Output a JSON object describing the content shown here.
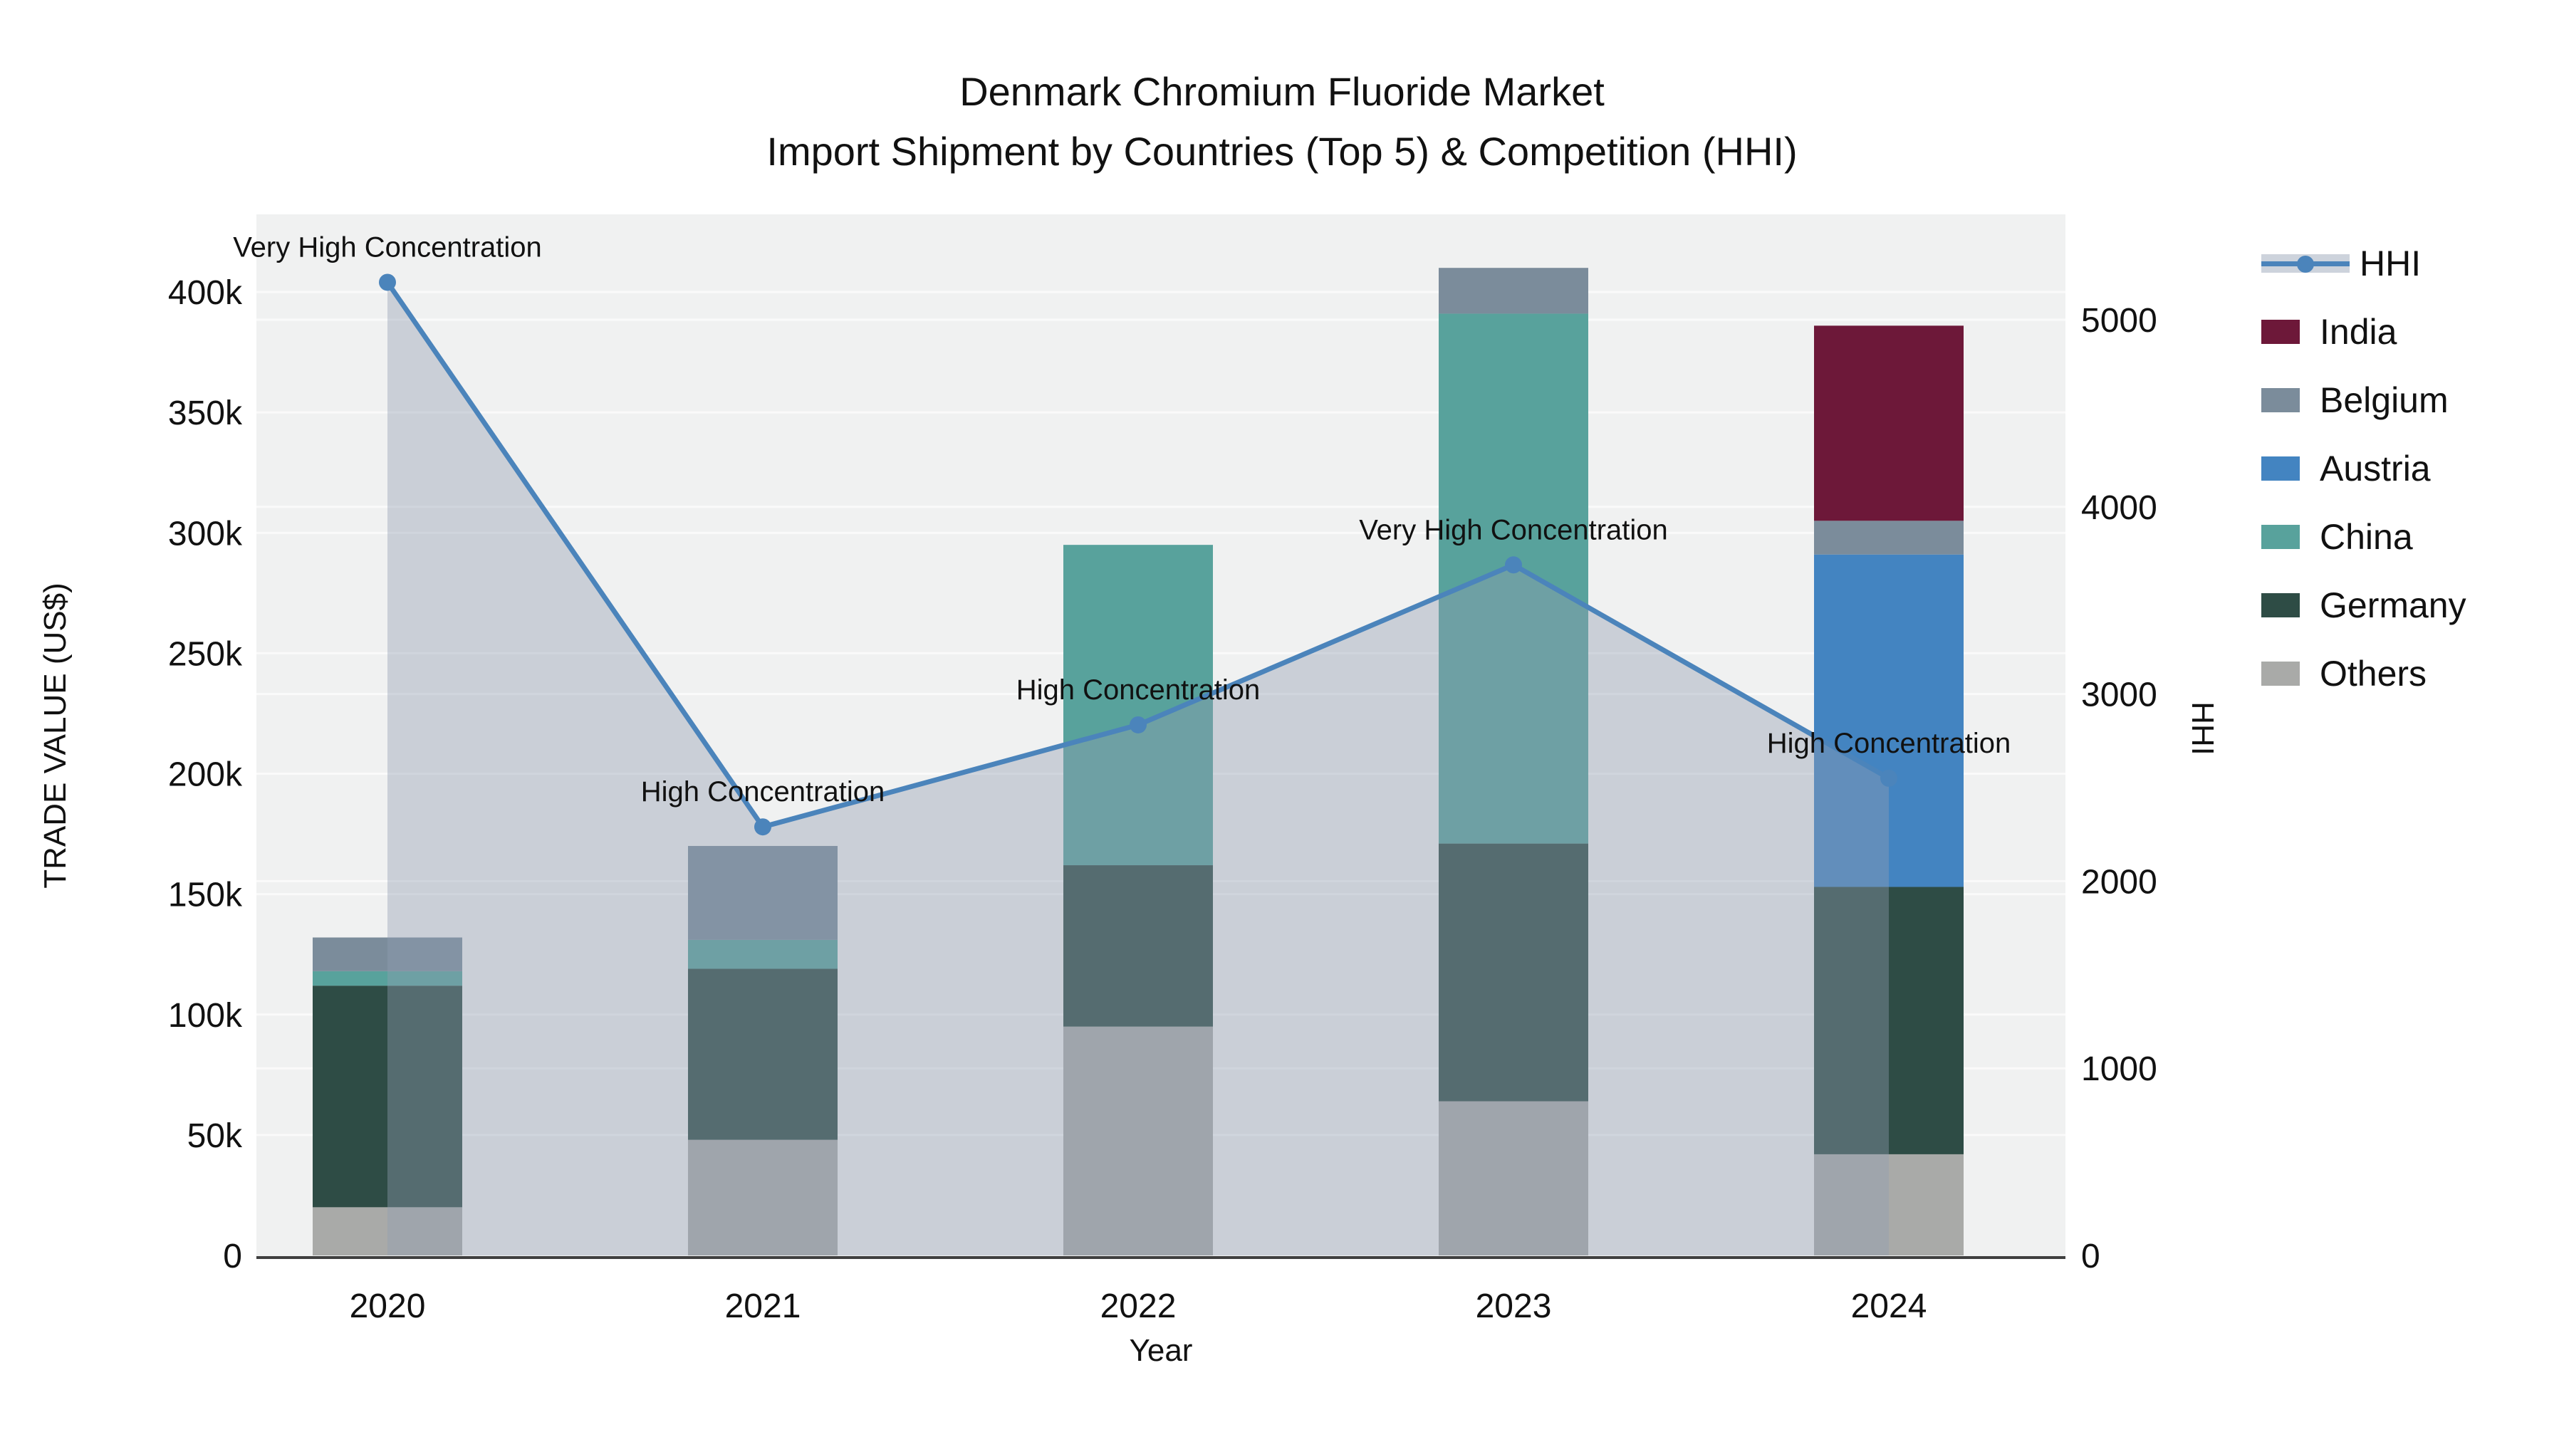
{
  "title": {
    "line1": "Denmark Chromium Fluoride Market",
    "line2": "Import Shipment by Countries (Top 5) & Competition (HHI)"
  },
  "axes": {
    "x": {
      "label": "Year",
      "categories": [
        "2020",
        "2021",
        "2022",
        "2023",
        "2024"
      ]
    },
    "left": {
      "label": "TRADE VALUE (US$)",
      "ticks": [
        "0",
        "50k",
        "100k",
        "150k",
        "200k",
        "250k",
        "300k",
        "350k",
        "400k"
      ],
      "tick_values": [
        0,
        50000,
        100000,
        150000,
        200000,
        250000,
        300000,
        350000,
        400000
      ]
    },
    "right": {
      "label": "HHI",
      "ticks": [
        "0",
        "1000",
        "2000",
        "3000",
        "4000",
        "5000"
      ],
      "tick_values": [
        0,
        1000,
        2000,
        3000,
        4000,
        5000
      ]
    }
  },
  "legend": {
    "items": [
      {
        "label": "HHI",
        "type": "line",
        "color": "#4b84bb"
      },
      {
        "label": "India",
        "type": "bar",
        "color": "#6d1839"
      },
      {
        "label": "Belgium",
        "type": "bar",
        "color": "#7b8c9b"
      },
      {
        "label": "Austria",
        "type": "bar",
        "color": "#4384c1"
      },
      {
        "label": "China",
        "type": "bar",
        "color": "#58a29c"
      },
      {
        "label": "Germany",
        "type": "bar",
        "color": "#2e4c45"
      },
      {
        "label": "Others",
        "type": "bar",
        "color": "#a9aaa8"
      }
    ]
  },
  "chart_data": {
    "type": "combo-stacked-bar-line",
    "categories": [
      "2020",
      "2021",
      "2022",
      "2023",
      "2024"
    ],
    "title": "Denmark Chromium Fluoride Market — Import Shipment by Countries (Top 5) & Competition (HHI)",
    "xlabel": "Year",
    "ylabel_left": "TRADE VALUE (US$)",
    "ylabel_right": "HHI",
    "ylim_left": [
      0,
      400000
    ],
    "ylim_right": [
      0,
      5000
    ],
    "grid": true,
    "legend_position": "right",
    "series": [
      {
        "name": "Others",
        "type": "bar",
        "color": "#a9aaa8",
        "values": [
          20000,
          48000,
          95000,
          64000,
          42000
        ]
      },
      {
        "name": "Germany",
        "type": "bar",
        "color": "#2e4c45",
        "values": [
          92000,
          71000,
          67000,
          107000,
          111000
        ]
      },
      {
        "name": "China",
        "type": "bar",
        "color": "#58a29c",
        "values": [
          6000,
          12000,
          133000,
          220000,
          0
        ]
      },
      {
        "name": "Austria",
        "type": "bar",
        "color": "#4384c1",
        "values": [
          0,
          0,
          0,
          0,
          138000
        ]
      },
      {
        "name": "Belgium",
        "type": "bar",
        "color": "#7b8c9b",
        "values": [
          14000,
          39000,
          0,
          19000,
          14000
        ]
      },
      {
        "name": "India",
        "type": "bar",
        "color": "#6d1839",
        "values": [
          0,
          0,
          0,
          0,
          81000
        ]
      }
    ],
    "hhi_line": {
      "name": "HHI",
      "type": "line",
      "color": "#4b84bb",
      "area_fill": "rgba(144,157,178,0.40)",
      "values": [
        5200,
        2290,
        2835,
        3690,
        2550
      ]
    },
    "annotations": [
      {
        "category": "2020",
        "text": "Very High Concentration"
      },
      {
        "category": "2021",
        "text": "High Concentration"
      },
      {
        "category": "2022",
        "text": "High Concentration"
      },
      {
        "category": "2023",
        "text": "Very High Concentration"
      },
      {
        "category": "2024",
        "text": "High Concentration"
      }
    ],
    "colors": {
      "background": "#ffffff",
      "panel": "#f0f1f1",
      "grid": "#fafafa",
      "axis_line": "#3f3f3f",
      "text": "#111111"
    }
  }
}
